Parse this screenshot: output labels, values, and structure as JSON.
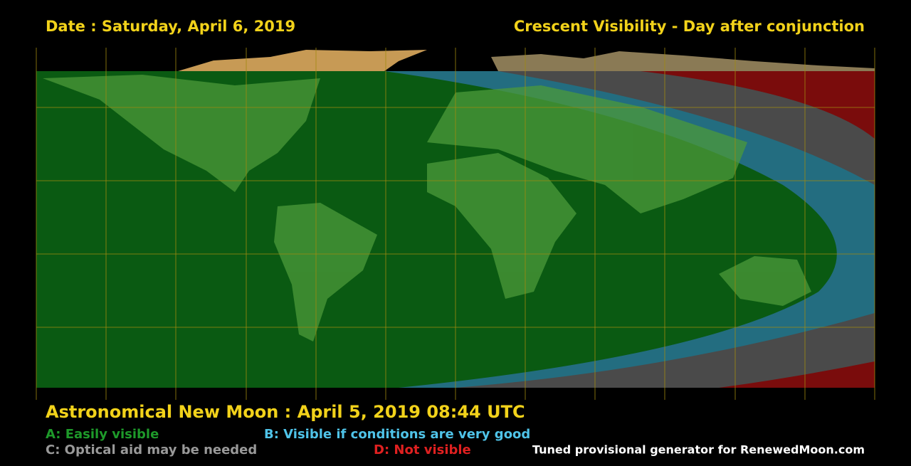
{
  "header": {
    "date": "Date : Saturday, April 6, 2019",
    "title": "Crescent Visibility - Day after conjunction"
  },
  "footer": {
    "new_moon": "Astronomical New Moon : April 5, 2019 08:44 UTC",
    "legend": [
      {
        "label": "A: Easily visible"
      },
      {
        "label": "B: Visible if conditions are very good"
      },
      {
        "label": "C: Optical aid may be needed"
      },
      {
        "label": "D: Not visible"
      }
    ],
    "credit": "Tuned provisional generator for RenewedMoon.com"
  }
}
